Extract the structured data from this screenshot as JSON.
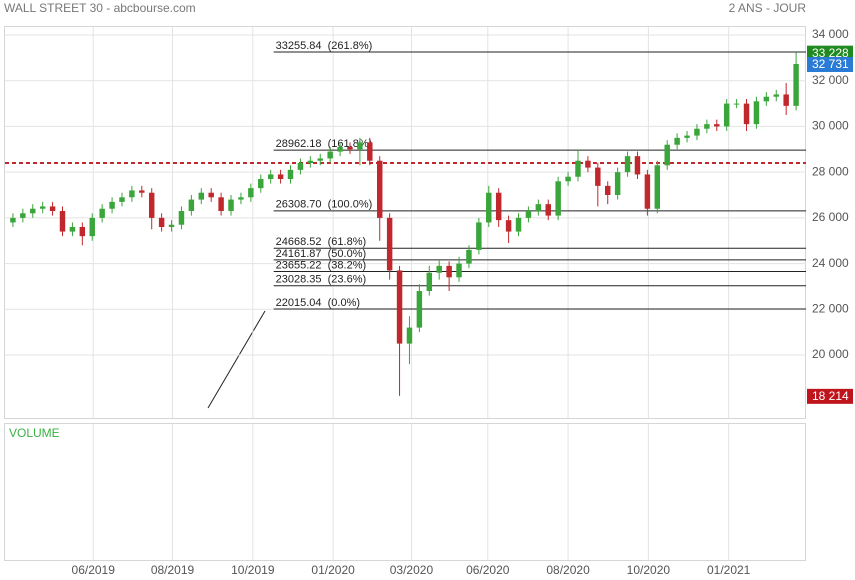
{
  "chart_data": {
    "type": "candlestick",
    "title": "WALL STREET 30 - abcbourse.com",
    "period": "2 ANS - JOUR",
    "volume_label": "VOLUME",
    "xlim": [
      -0.8,
      80.0
    ],
    "xticks": [
      {
        "value": 8.1,
        "label": "06/2019"
      },
      {
        "value": 16.1,
        "label": "08/2019"
      },
      {
        "value": 24.2,
        "label": "10/2019"
      },
      {
        "value": 32.3,
        "label": "01/2020"
      },
      {
        "value": 40.2,
        "label": "03/2020"
      },
      {
        "value": 47.9,
        "label": "06/2020"
      },
      {
        "value": 56.0,
        "label": "08/2020"
      },
      {
        "value": 64.1,
        "label": "10/2020"
      },
      {
        "value": 72.2,
        "label": "01/2021"
      }
    ],
    "ylim": [
      17245,
      34350
    ],
    "yticks": [
      {
        "value": 20000,
        "label": "20 000"
      },
      {
        "value": 22000,
        "label": "22 000"
      },
      {
        "value": 24000,
        "label": "24 000"
      },
      {
        "value": 26000,
        "label": "26 000"
      },
      {
        "value": 28000,
        "label": "28 000"
      },
      {
        "value": 30000,
        "label": "30 000"
      },
      {
        "value": 32000,
        "label": "32 000"
      },
      {
        "value": 34000,
        "label": "34 000"
      }
    ],
    "grid": true,
    "up_color": "#3aa53a",
    "down_color": "#c0282d",
    "open": [
      25800,
      26000,
      26200,
      26400,
      26500,
      26300,
      25400,
      25600,
      25200,
      26000,
      26400,
      26700,
      26900,
      27200,
      27100,
      26000,
      25600,
      25700,
      26300,
      26800,
      27100,
      26900,
      26300,
      26800,
      26900,
      27300,
      27700,
      27900,
      27700,
      28100,
      28400,
      28500,
      28600,
      28900,
      29100,
      29000,
      29300,
      28500,
      26000,
      23700,
      20500,
      21200,
      22800,
      23600,
      23900,
      23400,
      24000,
      24600,
      25800,
      27100,
      25900,
      25400,
      26000,
      26300,
      26600,
      26100,
      27600,
      27800,
      28500,
      28200,
      27400,
      27000,
      28000,
      28700,
      27900,
      26400,
      28300,
      29200,
      29500,
      29600,
      29900,
      30100,
      30000,
      31000,
      31000,
      30100,
      31100,
      31300,
      31400,
      30900
    ],
    "high": [
      26200,
      26400,
      26600,
      26700,
      26700,
      26500,
      25800,
      25800,
      26200,
      26600,
      26900,
      27100,
      27400,
      27400,
      27300,
      26200,
      25900,
      26500,
      27000,
      27300,
      27300,
      27100,
      27000,
      27100,
      27500,
      27900,
      28100,
      28100,
      28300,
      28600,
      28700,
      28800,
      29100,
      29300,
      29300,
      29500,
      29500,
      28700,
      26200,
      23900,
      21700,
      23100,
      23900,
      24200,
      24100,
      24300,
      24800,
      26000,
      27400,
      27300,
      26100,
      26200,
      26500,
      26800,
      26800,
      27800,
      28000,
      29000,
      28700,
      28400,
      27600,
      28200,
      28900,
      28900,
      28100,
      28500,
      29400,
      29700,
      29800,
      30100,
      30300,
      30300,
      31200,
      31200,
      31200,
      31300,
      31500,
      31600,
      31900,
      33228
    ],
    "low": [
      25600,
      25800,
      26000,
      26200,
      26100,
      25200,
      25200,
      24800,
      25000,
      25800,
      26200,
      26500,
      26700,
      26900,
      25500,
      25400,
      25400,
      25500,
      26100,
      26600,
      26700,
      26100,
      26100,
      26600,
      26700,
      27100,
      27500,
      27500,
      27500,
      27900,
      28200,
      28300,
      28400,
      28700,
      28800,
      28300,
      28300,
      25000,
      23300,
      18214,
      19600,
      21000,
      22600,
      23300,
      22800,
      23200,
      23800,
      24400,
      25600,
      25600,
      24900,
      25200,
      25800,
      26100,
      25900,
      25900,
      27400,
      27600,
      28000,
      26500,
      26600,
      26800,
      27800,
      27700,
      26100,
      26200,
      28100,
      29000,
      29300,
      29400,
      29700,
      29800,
      29800,
      30800,
      29800,
      29900,
      30900,
      31100,
      30500,
      30700
    ],
    "close": [
      26000,
      26200,
      26400,
      26500,
      26300,
      25400,
      25600,
      25200,
      26000,
      26400,
      26700,
      26900,
      27200,
      27100,
      26000,
      25600,
      25700,
      26300,
      26800,
      27100,
      26900,
      26300,
      26800,
      26900,
      27300,
      27700,
      27900,
      27700,
      28100,
      28400,
      28500,
      28600,
      28900,
      29100,
      29000,
      29300,
      28500,
      26000,
      23700,
      20500,
      21200,
      22800,
      23600,
      23900,
      23400,
      24000,
      24600,
      25800,
      27100,
      25900,
      25400,
      26000,
      26300,
      26600,
      26100,
      27600,
      27800,
      28500,
      28200,
      27400,
      27000,
      28000,
      28700,
      27900,
      26400,
      28300,
      29200,
      29500,
      29600,
      29900,
      30100,
      30000,
      31000,
      31000,
      30100,
      31100,
      31300,
      31400,
      30900,
      32731
    ],
    "fibonacci": [
      {
        "value": 33255.84,
        "label": "33255.84",
        "ratio": "(261.8%)"
      },
      {
        "value": 28962.18,
        "label": "28962.18",
        "ratio": "(161.8%)"
      },
      {
        "value": 26308.7,
        "label": "26308.70",
        "ratio": "(100.0%)"
      },
      {
        "value": 24668.52,
        "label": "24668.52",
        "ratio": "(61.8%)"
      },
      {
        "value": 24161.87,
        "label": "24161.87",
        "ratio": "(50.0%)"
      },
      {
        "value": 23655.22,
        "label": "23655.22",
        "ratio": "(38.2%)"
      },
      {
        "value": 23028.35,
        "label": "23028.35",
        "ratio": "(23.6%)"
      },
      {
        "value": 22015.04,
        "label": "22015.04",
        "ratio": "(0.0%)"
      }
    ],
    "fib_start": 26.3,
    "reference_line": {
      "value": 28400,
      "color": "#c0282d"
    },
    "price_tags": [
      {
        "value": 33228,
        "label": "33 228",
        "color": "#1f8a1f"
      },
      {
        "value": 32731,
        "label": "32 731",
        "color": "#2a7bd6"
      },
      {
        "value": 18214,
        "label": "18 214",
        "color": "#c0141c"
      }
    ]
  }
}
